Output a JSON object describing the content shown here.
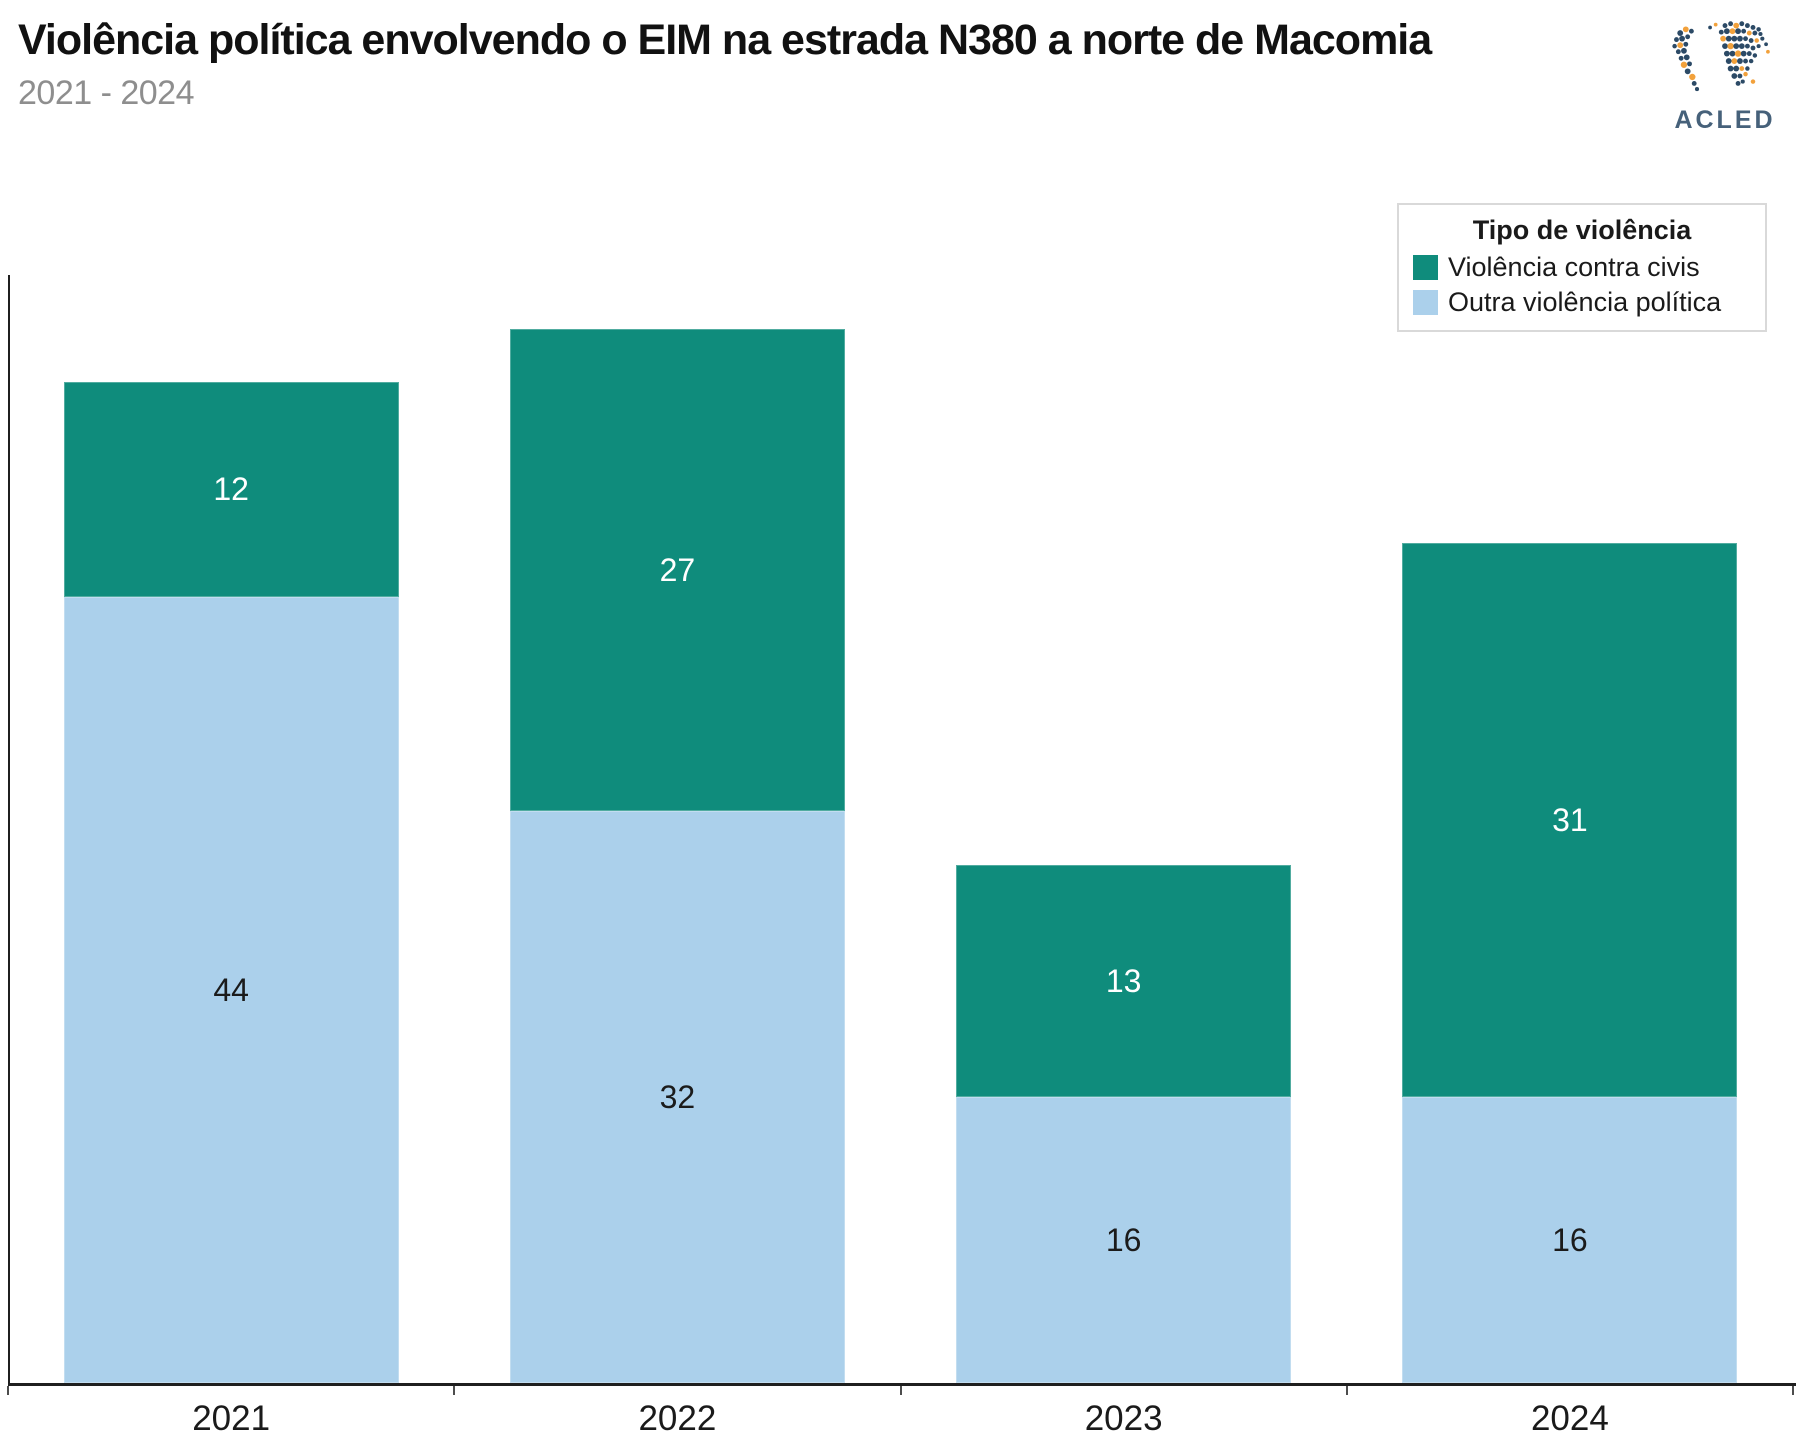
{
  "header": {
    "title": "Violência política envolvendo o EIM na estrada N380 a norte de Macomia",
    "subtitle": "2021 - 2024"
  },
  "logo": {
    "text": "ACLED"
  },
  "legend": {
    "title": "Tipo de violência"
  },
  "colors": {
    "violencia_contra_civis": "#0F8C7C",
    "outra_violencia_politica": "#ABD0EB",
    "title_text": "#111111",
    "subtitle_text": "#8E8E8E",
    "axis": "#1F1F1F"
  },
  "chart_data": {
    "type": "bar",
    "stacked": true,
    "title": "Violência política envolvendo o EIM na estrada N380 a norte de Macomia",
    "subtitle": "2021 - 2024",
    "categories": [
      "2021",
      "2022",
      "2023",
      "2024"
    ],
    "series": [
      {
        "name": "Violência contra civis",
        "color": "#0F8C7C",
        "label_color": "#FFFFFF",
        "values": [
          12,
          27,
          13,
          31
        ]
      },
      {
        "name": "Outra violência política",
        "color": "#ABD0EB",
        "label_color": "#1B1B1B",
        "values": [
          44,
          32,
          16,
          16
        ]
      }
    ],
    "stack_totals": [
      56,
      59,
      29,
      47
    ],
    "ylim": [
      0,
      62
    ],
    "xlabel": "",
    "ylabel": "",
    "grid": false,
    "data_labels": true,
    "legend_title": "Tipo de violência",
    "legend_position": "top-right"
  }
}
